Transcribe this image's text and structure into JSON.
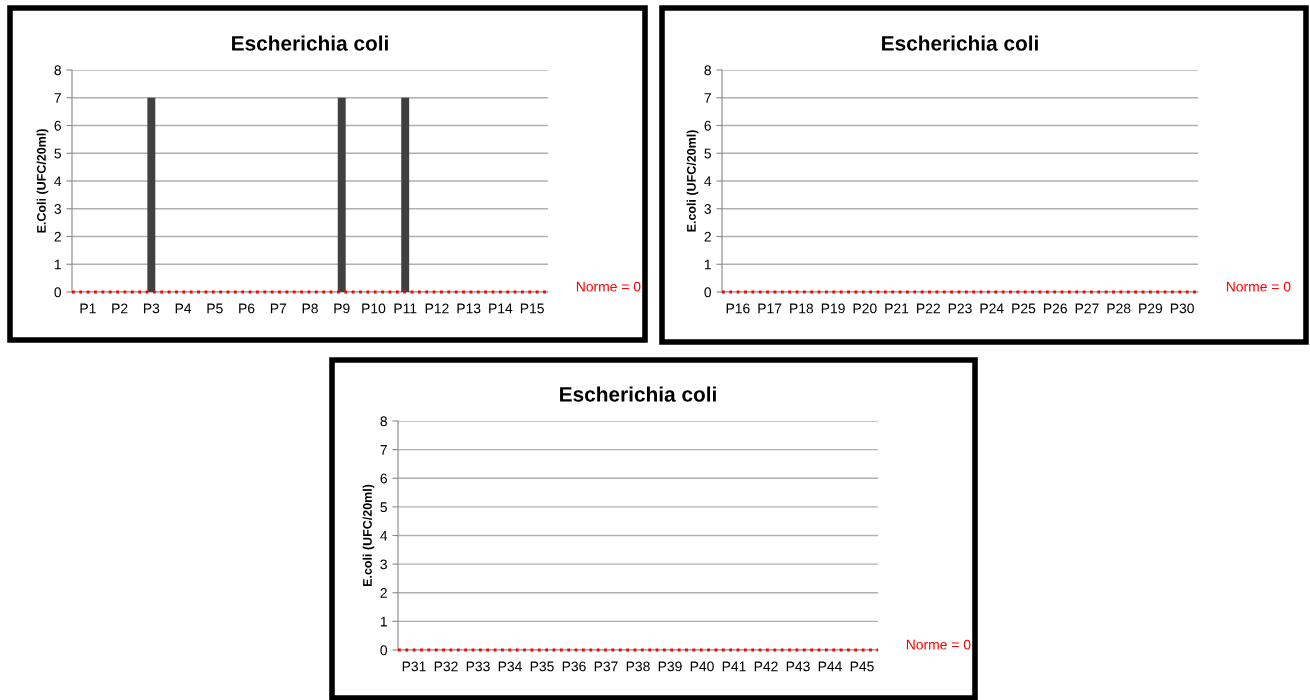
{
  "chart_data": [
    {
      "type": "bar",
      "title": "Escherichia coli",
      "ylabel": "E.Coli (UFC/20ml)",
      "categories": [
        "P1",
        "P2",
        "P3",
        "P4",
        "P5",
        "P6",
        "P7",
        "P8",
        "P9",
        "P10",
        "P11",
        "P12",
        "P13",
        "P14",
        "P15"
      ],
      "values": [
        0,
        0,
        7,
        0,
        0,
        0,
        0,
        0,
        7,
        0,
        7,
        0,
        0,
        0,
        0
      ],
      "color": "#404040",
      "ylim": [
        0,
        8
      ],
      "yticks": [
        0,
        1,
        2,
        3,
        4,
        5,
        6,
        7,
        8
      ],
      "grid": "y",
      "ref_lines": [
        {
          "axis": "y",
          "value": 0,
          "label": "Norme = 0",
          "color": "#ff0000",
          "line_style": "dotted"
        }
      ]
    },
    {
      "type": "bar",
      "title": "Escherichia coli",
      "ylabel": "E.coli (UFC/20ml)",
      "categories": [
        "P16",
        "P17",
        "P18",
        "P19",
        "P20",
        "P21",
        "P22",
        "P23",
        "P24",
        "P25",
        "P26",
        "P27",
        "P28",
        "P29",
        "P30"
      ],
      "values": [
        0,
        0,
        0,
        0,
        0,
        0,
        0,
        0,
        0,
        0,
        0,
        0,
        0,
        0,
        0
      ],
      "color": "#404040",
      "ylim": [
        0,
        8
      ],
      "yticks": [
        0,
        1,
        2,
        3,
        4,
        5,
        6,
        7,
        8
      ],
      "grid": "y",
      "ref_lines": [
        {
          "axis": "y",
          "value": 0,
          "label": "Norme = 0",
          "color": "#ff0000",
          "line_style": "dotted"
        }
      ]
    },
    {
      "type": "bar",
      "title": "Escherichia coli",
      "ylabel": "E.coli (UFC/20ml)",
      "categories": [
        "P31",
        "P32",
        "P33",
        "P34",
        "P35",
        "P36",
        "P37",
        "P38",
        "P39",
        "P40",
        "P41",
        "P42",
        "P43",
        "P44",
        "P45"
      ],
      "values": [
        0,
        0,
        0,
        0,
        0,
        0,
        0,
        0,
        0,
        0,
        0,
        0,
        0,
        0,
        0
      ],
      "color": "#404040",
      "ylim": [
        0,
        8
      ],
      "yticks": [
        0,
        1,
        2,
        3,
        4,
        5,
        6,
        7,
        8
      ],
      "grid": "y",
      "ref_lines": [
        {
          "axis": "y",
          "value": 0,
          "label": "Norme = 0",
          "color": "#ff0000",
          "line_style": "dotted"
        }
      ]
    }
  ]
}
